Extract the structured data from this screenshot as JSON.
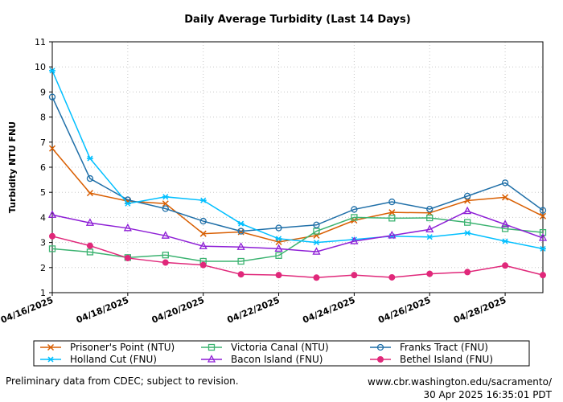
{
  "chart_data": {
    "type": "line",
    "title": "Daily Average Turbidity (Last 14 Days)",
    "xlabel": "",
    "ylabel": "Turbidity NTU FNU",
    "ylim": [
      1,
      11
    ],
    "yticks": [
      1,
      2,
      3,
      4,
      5,
      6,
      7,
      8,
      9,
      10,
      11
    ],
    "x": [
      "04/16/2025",
      "04/17/2025",
      "04/18/2025",
      "04/19/2025",
      "04/20/2025",
      "04/21/2025",
      "04/22/2025",
      "04/23/2025",
      "04/24/2025",
      "04/25/2025",
      "04/26/2025",
      "04/27/2025",
      "04/28/2025",
      "04/29/2025"
    ],
    "xtick_labels": [
      "04/16/2025",
      "04/18/2025",
      "04/20/2025",
      "04/22/2025",
      "04/24/2025",
      "04/26/2025",
      "04/28/2025"
    ],
    "grid": true,
    "series": [
      {
        "name": "Prisoner's Point (NTU)",
        "color": "#d95f02",
        "marker": "x",
        "values": [
          6.75,
          4.97,
          4.65,
          4.55,
          3.35,
          3.42,
          3.02,
          3.28,
          3.88,
          4.2,
          4.18,
          4.67,
          4.8,
          4.05
        ]
      },
      {
        "name": "Victoria Canal (NTU)",
        "color": "#3cb371",
        "marker": "square",
        "values": [
          2.75,
          2.62,
          2.4,
          2.5,
          2.25,
          2.25,
          2.48,
          3.45,
          4.0,
          3.97,
          3.98,
          3.8,
          3.55,
          3.4
        ]
      },
      {
        "name": "Franks Tract (FNU)",
        "color": "#1f6fa8",
        "marker": "circle",
        "values": [
          8.8,
          5.55,
          4.7,
          4.35,
          3.85,
          3.45,
          3.58,
          3.7,
          4.32,
          4.62,
          4.33,
          4.85,
          5.38,
          4.28
        ]
      },
      {
        "name": "Holland Cut (FNU)",
        "color": "#00bfff",
        "marker": "star",
        "values": [
          9.85,
          6.35,
          4.55,
          4.82,
          4.68,
          3.75,
          3.15,
          3.0,
          3.12,
          3.25,
          3.22,
          3.38,
          3.05,
          2.75
        ]
      },
      {
        "name": "Bacon Island (FNU)",
        "color": "#8e1fd6",
        "marker": "triangle",
        "values": [
          4.1,
          3.78,
          3.57,
          3.27,
          2.85,
          2.82,
          2.75,
          2.63,
          3.05,
          3.28,
          3.52,
          4.25,
          3.72,
          3.18
        ]
      },
      {
        "name": "Bethel Island (FNU)",
        "color": "#e0287a",
        "marker": "dot",
        "values": [
          3.25,
          2.87,
          2.38,
          2.2,
          2.1,
          1.73,
          1.7,
          1.6,
          1.7,
          1.61,
          1.75,
          1.82,
          2.08,
          1.7
        ]
      }
    ]
  },
  "footer": {
    "note": "Preliminary data from CDEC; subject to revision.",
    "url": "www.cbr.washington.edu/sacramento/",
    "timestamp": "30 Apr 2025 16:35:01 PDT"
  }
}
